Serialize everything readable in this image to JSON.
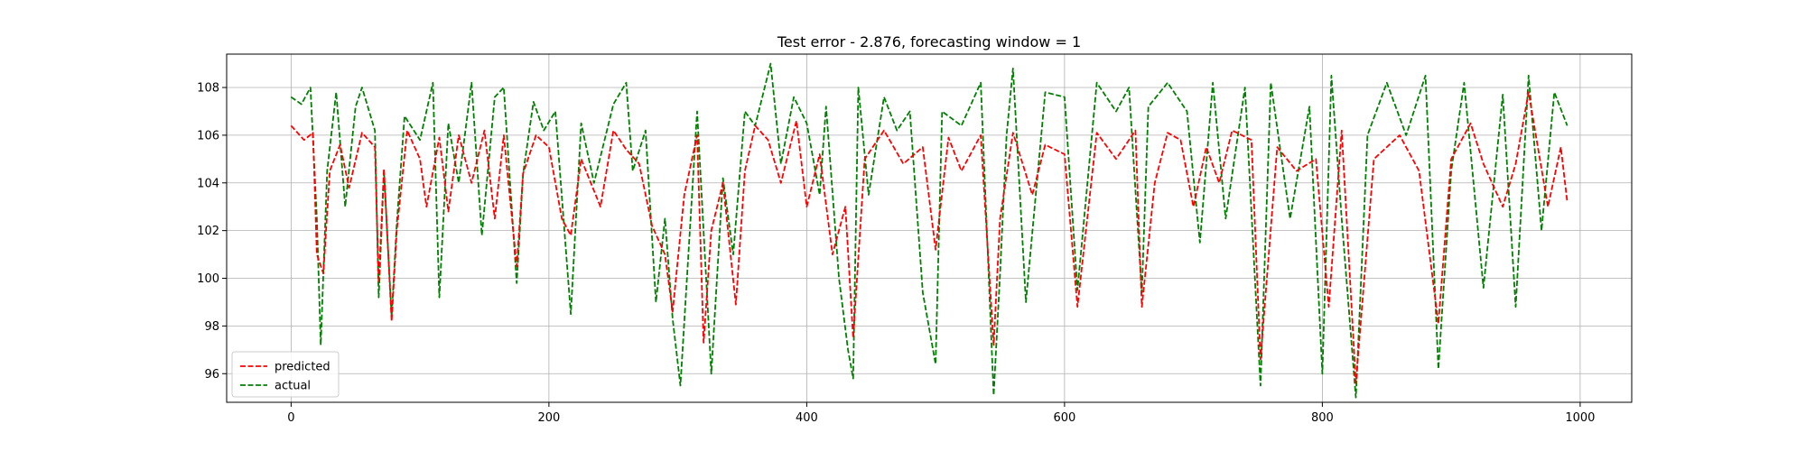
{
  "chart_data": {
    "type": "line",
    "title": "Test error - 2.876, forecasting window = 1",
    "xlabel": "",
    "ylabel": "",
    "xlim": [
      -50,
      1040
    ],
    "ylim": [
      94.8,
      109.4
    ],
    "x_ticks": [
      0,
      200,
      400,
      600,
      800,
      1000
    ],
    "y_ticks": [
      96,
      98,
      100,
      102,
      104,
      106,
      108
    ],
    "grid": true,
    "legend_position": "lower-left",
    "series": [
      {
        "name": "predicted",
        "color": "#ff0000",
        "linestyle": "dashed",
        "x": [
          0,
          10,
          17,
          20,
          25,
          30,
          38,
          45,
          55,
          65,
          68,
          72,
          78,
          82,
          90,
          100,
          105,
          115,
          122,
          130,
          140,
          150,
          158,
          165,
          175,
          180,
          190,
          200,
          210,
          217,
          225,
          240,
          250,
          260,
          270,
          280,
          290,
          296,
          305,
          315,
          320,
          326,
          335,
          345,
          352,
          360,
          370,
          380,
          392,
          400,
          410,
          420,
          430,
          436,
          445,
          460,
          475,
          490,
          500,
          510,
          520,
          535,
          545,
          550,
          560,
          575,
          585,
          600,
          610,
          625,
          640,
          655,
          660,
          670,
          680,
          690,
          700,
          710,
          720,
          730,
          745,
          752,
          765,
          780,
          795,
          805,
          815,
          826,
          840,
          860,
          875,
          890,
          900,
          915,
          925,
          940,
          950,
          960,
          975,
          985,
          990
        ],
        "y": [
          106.4,
          105.8,
          106.1,
          101.0,
          100.2,
          104.5,
          105.6,
          103.8,
          106.1,
          105.5,
          99.8,
          104.6,
          98.2,
          102.0,
          106.2,
          105.0,
          103.0,
          105.9,
          102.8,
          106.0,
          104.0,
          106.2,
          102.5,
          106.0,
          100.5,
          104.4,
          106.0,
          105.5,
          102.5,
          101.8,
          105.0,
          103.0,
          106.2,
          105.4,
          104.8,
          102.2,
          101.0,
          98.6,
          103.5,
          106.0,
          97.3,
          102.0,
          104.0,
          98.9,
          104.5,
          106.4,
          105.8,
          104.0,
          106.6,
          103.0,
          105.2,
          101.0,
          103.0,
          97.5,
          105.0,
          106.2,
          104.8,
          105.5,
          101.2,
          105.9,
          104.5,
          106.0,
          97.2,
          102.5,
          106.1,
          103.5,
          105.6,
          105.2,
          98.8,
          106.1,
          105.0,
          106.2,
          98.8,
          104.0,
          106.1,
          105.8,
          103.0,
          105.5,
          104.0,
          106.2,
          105.8,
          96.6,
          105.5,
          104.5,
          105.0,
          98.8,
          106.2,
          95.6,
          105.0,
          106.0,
          104.5,
          98.1,
          105.0,
          106.5,
          104.8,
          103.0,
          104.8,
          107.8,
          103.0,
          105.5,
          103.2
        ]
      },
      {
        "name": "actual",
        "color": "#008000",
        "linestyle": "dashed",
        "x": [
          0,
          8,
          15,
          20,
          23,
          28,
          35,
          42,
          50,
          55,
          65,
          68,
          72,
          78,
          82,
          88,
          100,
          110,
          115,
          122,
          130,
          140,
          148,
          158,
          165,
          175,
          180,
          188,
          196,
          205,
          217,
          225,
          235,
          250,
          260,
          265,
          275,
          283,
          290,
          296,
          302,
          315,
          326,
          335,
          343,
          352,
          360,
          372,
          380,
          390,
          400,
          410,
          415,
          425,
          432,
          436,
          440,
          448,
          460,
          470,
          480,
          490,
          500,
          505,
          520,
          535,
          545,
          550,
          555,
          560,
          570,
          585,
          600,
          610,
          625,
          640,
          650,
          660,
          665,
          680,
          695,
          705,
          715,
          725,
          740,
          752,
          760,
          775,
          790,
          800,
          807,
          815,
          826,
          835,
          850,
          865,
          880,
          890,
          900,
          910,
          925,
          940,
          950,
          960,
          970,
          980,
          990
        ],
        "y": [
          107.6,
          107.3,
          108.0,
          102.5,
          97.2,
          104.5,
          107.8,
          103.0,
          107.2,
          108.0,
          106.2,
          99.2,
          104.5,
          98.4,
          102.3,
          106.8,
          105.8,
          108.2,
          99.2,
          106.5,
          104.0,
          108.2,
          101.8,
          107.6,
          108.0,
          99.8,
          104.4,
          107.4,
          106.2,
          107.0,
          98.5,
          106.5,
          104.0,
          107.3,
          108.2,
          104.5,
          106.2,
          99.0,
          102.5,
          98.3,
          95.5,
          107.0,
          96.0,
          104.2,
          101.0,
          107.0,
          106.4,
          109.0,
          104.8,
          107.6,
          106.5,
          103.5,
          107.2,
          100.0,
          97.0,
          95.8,
          108.0,
          103.5,
          107.6,
          106.2,
          107.0,
          99.4,
          96.4,
          107.0,
          106.4,
          108.2,
          95.1,
          100.2,
          106.0,
          108.8,
          99.0,
          107.8,
          107.6,
          99.5,
          108.2,
          107.0,
          108.0,
          99.4,
          107.2,
          108.2,
          107.0,
          101.5,
          108.2,
          102.5,
          108.0,
          95.5,
          108.2,
          102.5,
          107.2,
          96.0,
          108.5,
          102.5,
          95.0,
          106.0,
          108.2,
          106.0,
          108.5,
          96.2,
          104.5,
          108.2,
          99.6,
          107.7,
          98.8,
          108.5,
          102.0,
          107.8,
          106.4
        ]
      }
    ]
  }
}
